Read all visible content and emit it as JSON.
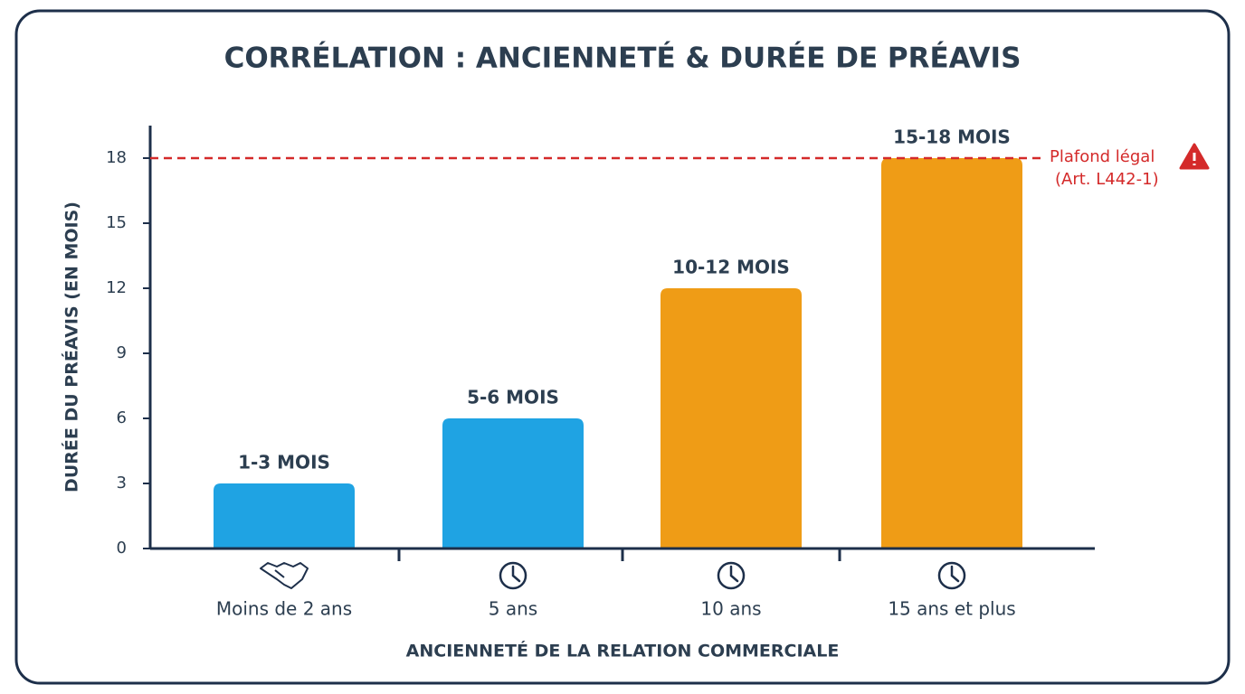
{
  "chart_data": {
    "type": "bar",
    "title": "CORRÉLATION : ANCIENNETÉ & DURÉE DE PRÉAVIS",
    "x_label": "ANCIENNETÉ DE LA RELATION COMMERCIALE",
    "y_label": "DURÉE DU PRÉAVIS (EN MOIS)",
    "categories": [
      "Moins de 2 ans",
      "5 ans",
      "10 ans",
      "15 ans et plus"
    ],
    "values": [
      3,
      6,
      12,
      18
    ],
    "value_labels": [
      "1-3 MOIS",
      "5-6 MOIS",
      "10-12 MOIS",
      "15-18 MOIS"
    ],
    "colors": [
      "#1fa3e3",
      "#1fa3e3",
      "#ef9c16",
      "#ef9c16"
    ],
    "ylim": [
      0,
      19.5
    ],
    "yticks": [
      0,
      3,
      6,
      9,
      12,
      15,
      18
    ],
    "reference_line": {
      "value": 18,
      "color": "#d42a2a",
      "label": "Plafond légal",
      "sublabel": "(Art. L442-1)"
    }
  }
}
